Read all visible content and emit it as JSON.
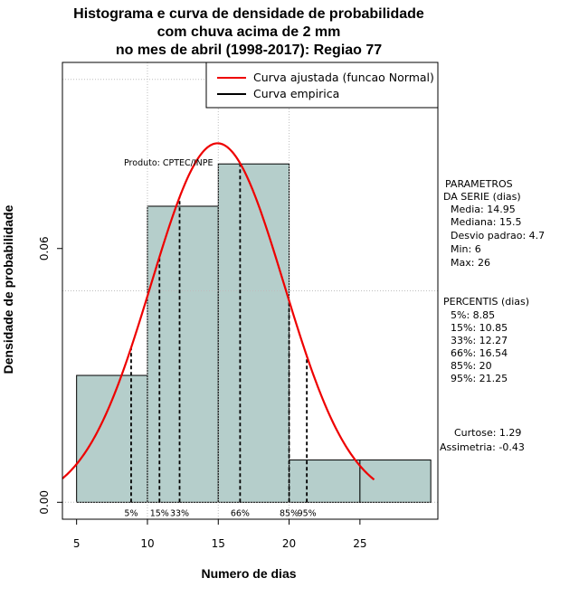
{
  "chart_data": {
    "type": "histogram",
    "title_lines": [
      "Histograma e curva de densidade de probabilidade",
      "com chuva acima de 2 mm",
      "no mes de abril (1998-2017): Regiao 77"
    ],
    "xlabel": "Numero de dias",
    "ylabel": "Densidade de probabilidade",
    "xlim": [
      4,
      30.5
    ],
    "ylim": [
      -0.004,
      0.104
    ],
    "xticks": [
      5,
      10,
      15,
      20,
      25
    ],
    "xtick_labels": [
      "5",
      "10",
      "15",
      "20",
      "25"
    ],
    "yticks": [
      0.0,
      0.06
    ],
    "ytick_labels": [
      "0.00",
      "0.06"
    ],
    "grid_x": [
      10,
      15,
      20
    ],
    "grid_y": [
      0.05,
      0.1
    ],
    "bars": [
      {
        "x0": 5,
        "x1": 10,
        "density": 0.03
      },
      {
        "x0": 10,
        "x1": 15,
        "density": 0.07
      },
      {
        "x0": 15,
        "x1": 20,
        "density": 0.08
      },
      {
        "x0": 20,
        "x1": 25,
        "density": 0.01
      },
      {
        "x0": 25,
        "x1": 30,
        "density": 0.01
      }
    ],
    "fitted_curve": {
      "distribution": "normal",
      "mean": 14.95,
      "sd": 4.7,
      "x_range": [
        4,
        26
      ]
    },
    "percentile_lines": [
      8.85,
      10.85,
      12.27,
      16.54,
      20,
      21.25
    ],
    "percentile_labels": [
      {
        "label": "5%",
        "x": 8.85
      },
      {
        "label": "15%",
        "x": 10.85
      },
      {
        "label": "33%",
        "x": 12.27
      },
      {
        "label": "66%",
        "x": 16.54
      },
      {
        "label": "85%",
        "x": 20
      },
      {
        "label": "95%",
        "x": 21.25
      }
    ],
    "legend": {
      "position": "top-right",
      "entries": [
        {
          "label": "Curva ajustada (funcao Normal)",
          "color": "#ee0000"
        },
        {
          "label": "Curva empirica",
          "color": "#000000"
        }
      ]
    },
    "colors": {
      "bar_fill": "#b5cecb",
      "curve": "#ee0000",
      "lines": "#000000",
      "grid": "#bebebe"
    },
    "annotation": "Produto: CPTEC/INPE",
    "parameters_title": [
      "PARAMETROS",
      "DA SERIE (dias)"
    ],
    "parameters": [
      "Media: 14.95",
      "Mediana: 15.5",
      "Desvio padrao: 4.7",
      "Min: 6",
      "Max: 26"
    ],
    "percentis_title": "PERCENTIS (dias)",
    "percentis": [
      "5%: 8.85",
      "15%: 10.85",
      "33%: 12.27",
      "66%: 16.54",
      "85%: 20",
      "95%: 21.25"
    ],
    "curtose": "Curtose: 1.29",
    "assimetria": "Assimetria: -0.43"
  }
}
